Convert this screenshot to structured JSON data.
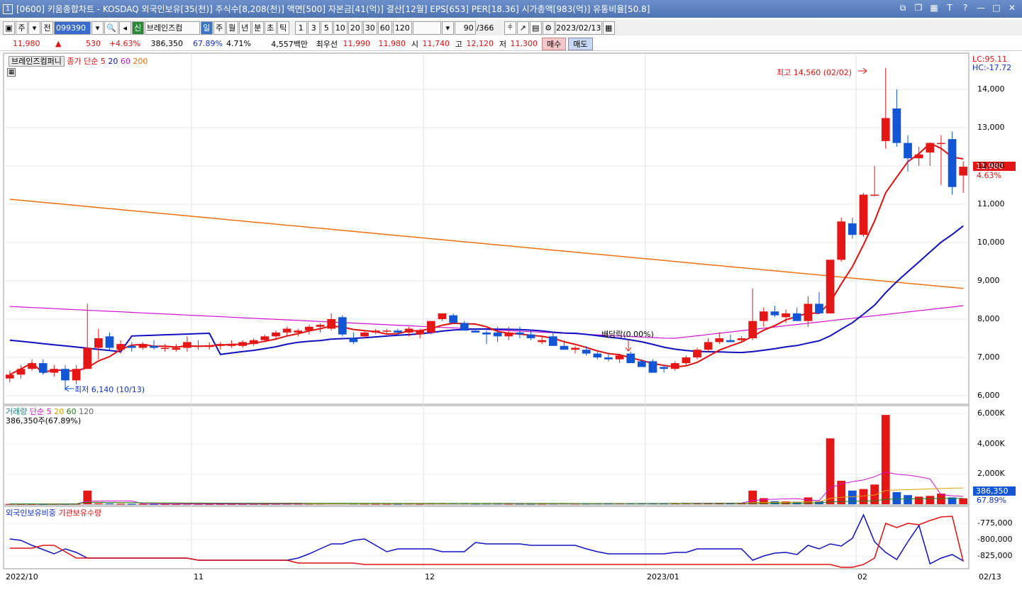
{
  "window": {
    "number": "1",
    "title": "[0600] 키움종합차트 - KOSDAQ 외국인보유[35(천)] 주식수[8,208(천)] 액면[500] 자본금[41(억)] 결산[12월] EPS[653] PER[18.36] 시가총액[983(억)] 유통비율[50.8]"
  },
  "toolbar": {
    "period": "주",
    "prev": "전",
    "code": "099390",
    "shin": "신",
    "name": "브레인즈컴",
    "tabs": [
      "일",
      "주",
      "월",
      "년",
      "분",
      "초",
      "틱"
    ],
    "nums": [
      "1",
      "3",
      "5",
      "10",
      "20",
      "30",
      "60",
      "120"
    ],
    "count": "90",
    "total": "/366",
    "date": "2023/02/13"
  },
  "quote": {
    "price": "11,980",
    "change": "530",
    "pct": "+4.63%",
    "volume": "386,350",
    "vol_ratio": "67.89%",
    "turnover": "4.71%",
    "amount": "4,557백만",
    "pref_label": "최우선",
    "bid": "11,990",
    "ask": "11,980",
    "open_label": "시",
    "open": "11,740",
    "high_label": "고",
    "high": "12,120",
    "low_label": "저",
    "low": "11,300",
    "buy": "매수",
    "sell": "매도"
  },
  "legend": {
    "name": "브레인즈컴퍼니",
    "ma_label": "종가 단순 5",
    "ma20": "20",
    "ma60": "60",
    "ma200": "200",
    "lc": "LC:95.11",
    "hc": "HC:-17.72",
    "high_note": "최고 14,560 (02/02)",
    "low_note": "최저 6,140 (10/13)",
    "dividend": "배당락(0.00%)",
    "last_price": "11,980",
    "last_pct": "4.63%"
  },
  "vol_legend": {
    "label": "거래량",
    "ma": "단순 5",
    "ma20": "20",
    "ma60": "60",
    "ma120": "120",
    "value": "386,350주(67.89%)",
    "last": "386,350",
    "last_pct": "67.89%"
  },
  "inv_legend": {
    "foreign": "외국인보유비중",
    "inst": "기관보유수량"
  },
  "axis": {
    "price_ticks": [
      "14,000",
      "13,000",
      "12,000",
      "11,000",
      "10,000",
      "9,000",
      "8,000",
      "7,000",
      "6,000"
    ],
    "vol_ticks": [
      "6,000K",
      "4,000K",
      "2,000K"
    ],
    "inv_ticks": [
      "-775,000",
      "-800,000",
      "-825,000"
    ],
    "dates": [
      "2022/10",
      "11",
      "12",
      "2023/01",
      "02",
      "02/13"
    ]
  },
  "colors": {
    "up": "#e51616",
    "down": "#1256d6",
    "ma5": "#e01010",
    "ma20": "#1010c0",
    "ma60": "#d010d0",
    "ma200": "#f07010"
  },
  "chart_data": {
    "type": "candlestick",
    "candles": [
      [
        6450,
        6650,
        6350,
        6550
      ],
      [
        6550,
        6800,
        6450,
        6700
      ],
      [
        6700,
        6950,
        6650,
        6850
      ],
      [
        6850,
        6950,
        6550,
        6600
      ],
      [
        6600,
        6800,
        6500,
        6700
      ],
      [
        6700,
        6800,
        6140,
        6400
      ],
      [
        6400,
        6800,
        6300,
        6700
      ],
      [
        6700,
        8400,
        6700,
        7250
      ],
      [
        7250,
        7750,
        6950,
        7500
      ],
      [
        7550,
        7650,
        7200,
        7250
      ],
      [
        7200,
        7450,
        7100,
        7350
      ],
      [
        7300,
        7400,
        7150,
        7250
      ],
      [
        7250,
        7400,
        7200,
        7350
      ],
      [
        7300,
        7450,
        7200,
        7250
      ],
      [
        7250,
        7350,
        7150,
        7250
      ],
      [
        7200,
        7350,
        7150,
        7250
      ],
      [
        7250,
        7550,
        7150,
        7400
      ],
      [
        7300,
        7450,
        7200,
        7300
      ],
      [
        7300,
        7400,
        7200,
        7300
      ],
      [
        7300,
        7400,
        7200,
        7350
      ],
      [
        7300,
        7450,
        7250,
        7350
      ],
      [
        7300,
        7450,
        7250,
        7400
      ],
      [
        7350,
        7500,
        7300,
        7450
      ],
      [
        7450,
        7600,
        7400,
        7550
      ],
      [
        7550,
        7700,
        7450,
        7650
      ],
      [
        7650,
        7800,
        7550,
        7750
      ],
      [
        7650,
        7750,
        7550,
        7700
      ],
      [
        7700,
        7850,
        7600,
        7800
      ],
      [
        7800,
        7900,
        7650,
        7850
      ],
      [
        7750,
        8150,
        7700,
        8000
      ],
      [
        8050,
        8100,
        7550,
        7600
      ],
      [
        7500,
        7650,
        7350,
        7400
      ],
      [
        7550,
        7700,
        7500,
        7650
      ],
      [
        7650,
        7750,
        7600,
        7700
      ],
      [
        7700,
        7750,
        7600,
        7700
      ],
      [
        7700,
        7750,
        7600,
        7650
      ],
      [
        7650,
        7800,
        7550,
        7750
      ],
      [
        7600,
        7750,
        7500,
        7700
      ],
      [
        7650,
        7900,
        7600,
        7950
      ],
      [
        8000,
        8150,
        7950,
        8150
      ],
      [
        8100,
        8150,
        7950,
        7900
      ],
      [
        7900,
        7950,
        7700,
        7700
      ],
      [
        7700,
        7750,
        7650,
        7650
      ],
      [
        7650,
        7700,
        7350,
        7600
      ],
      [
        7650,
        7800,
        7400,
        7550
      ],
      [
        7550,
        7800,
        7450,
        7650
      ],
      [
        7650,
        7800,
        7500,
        7600
      ],
      [
        7600,
        7700,
        7450,
        7500
      ],
      [
        7400,
        7550,
        7350,
        7450
      ],
      [
        7550,
        7650,
        7350,
        7300
      ],
      [
        7300,
        7450,
        7200,
        7200
      ],
      [
        7200,
        7300,
        7100,
        7250
      ],
      [
        7200,
        7300,
        7050,
        7100
      ],
      [
        7100,
        7150,
        6950,
        7000
      ],
      [
        7000,
        7100,
        6900,
        6950
      ],
      [
        6950,
        7100,
        6850,
        7050
      ],
      [
        7100,
        7150,
        6900,
        6850
      ],
      [
        6900,
        6950,
        6750,
        6750
      ],
      [
        6900,
        6950,
        6650,
        6600
      ],
      [
        6750,
        6800,
        6600,
        6700
      ],
      [
        6700,
        6900,
        6650,
        6850
      ],
      [
        6850,
        7050,
        6800,
        7000
      ],
      [
        7000,
        7250,
        6950,
        7200
      ],
      [
        7200,
        7500,
        7150,
        7400
      ],
      [
        7400,
        7650,
        7350,
        7500
      ],
      [
        7450,
        7600,
        7400,
        7400
      ],
      [
        7450,
        7550,
        7400,
        7500
      ],
      [
        7500,
        8800,
        7450,
        7950
      ],
      [
        7950,
        8300,
        7800,
        8200
      ],
      [
        8200,
        8350,
        8050,
        8100
      ],
      [
        8050,
        8250,
        7900,
        8150
      ],
      [
        8150,
        8300,
        8000,
        7950
      ],
      [
        7950,
        8600,
        7800,
        8400
      ],
      [
        8400,
        8700,
        8200,
        8150
      ],
      [
        8150,
        9550,
        8150,
        9550
      ],
      [
        9550,
        10650,
        9500,
        10550
      ],
      [
        10500,
        10650,
        10100,
        10200
      ],
      [
        10200,
        11300,
        10150,
        11250
      ],
      [
        11250,
        12000,
        11200,
        11250
      ],
      [
        12650,
        14560,
        12450,
        13250
      ],
      [
        13500,
        14000,
        12500,
        12600
      ],
      [
        12600,
        12800,
        11850,
        12200
      ],
      [
        12200,
        12500,
        12000,
        12300
      ],
      [
        12350,
        12600,
        12000,
        12600
      ],
      [
        12600,
        12800,
        11500,
        12600
      ],
      [
        12700,
        12900,
        11250,
        11450
      ],
      [
        11750,
        12120,
        11300,
        11980
      ]
    ],
    "volume_k": [
      20,
      15,
      15,
      10,
      20,
      20,
      30,
      900,
      60,
      50,
      30,
      25,
      25,
      20,
      20,
      20,
      30,
      25,
      20,
      20,
      20,
      20,
      25,
      25,
      30,
      35,
      35,
      35,
      40,
      50,
      60,
      40,
      35,
      30,
      30,
      30,
      40,
      30,
      45,
      55,
      50,
      45,
      35,
      40,
      40,
      35,
      35,
      30,
      35,
      40,
      45,
      40,
      40,
      45,
      45,
      50,
      60,
      55,
      50,
      45,
      45,
      60,
      70,
      80,
      80,
      70,
      70,
      900,
      400,
      200,
      180,
      160,
      450,
      200,
      4350,
      1550,
      900,
      1000,
      1300,
      5900,
      800,
      600,
      500,
      550,
      700,
      450,
      386
    ]
  }
}
